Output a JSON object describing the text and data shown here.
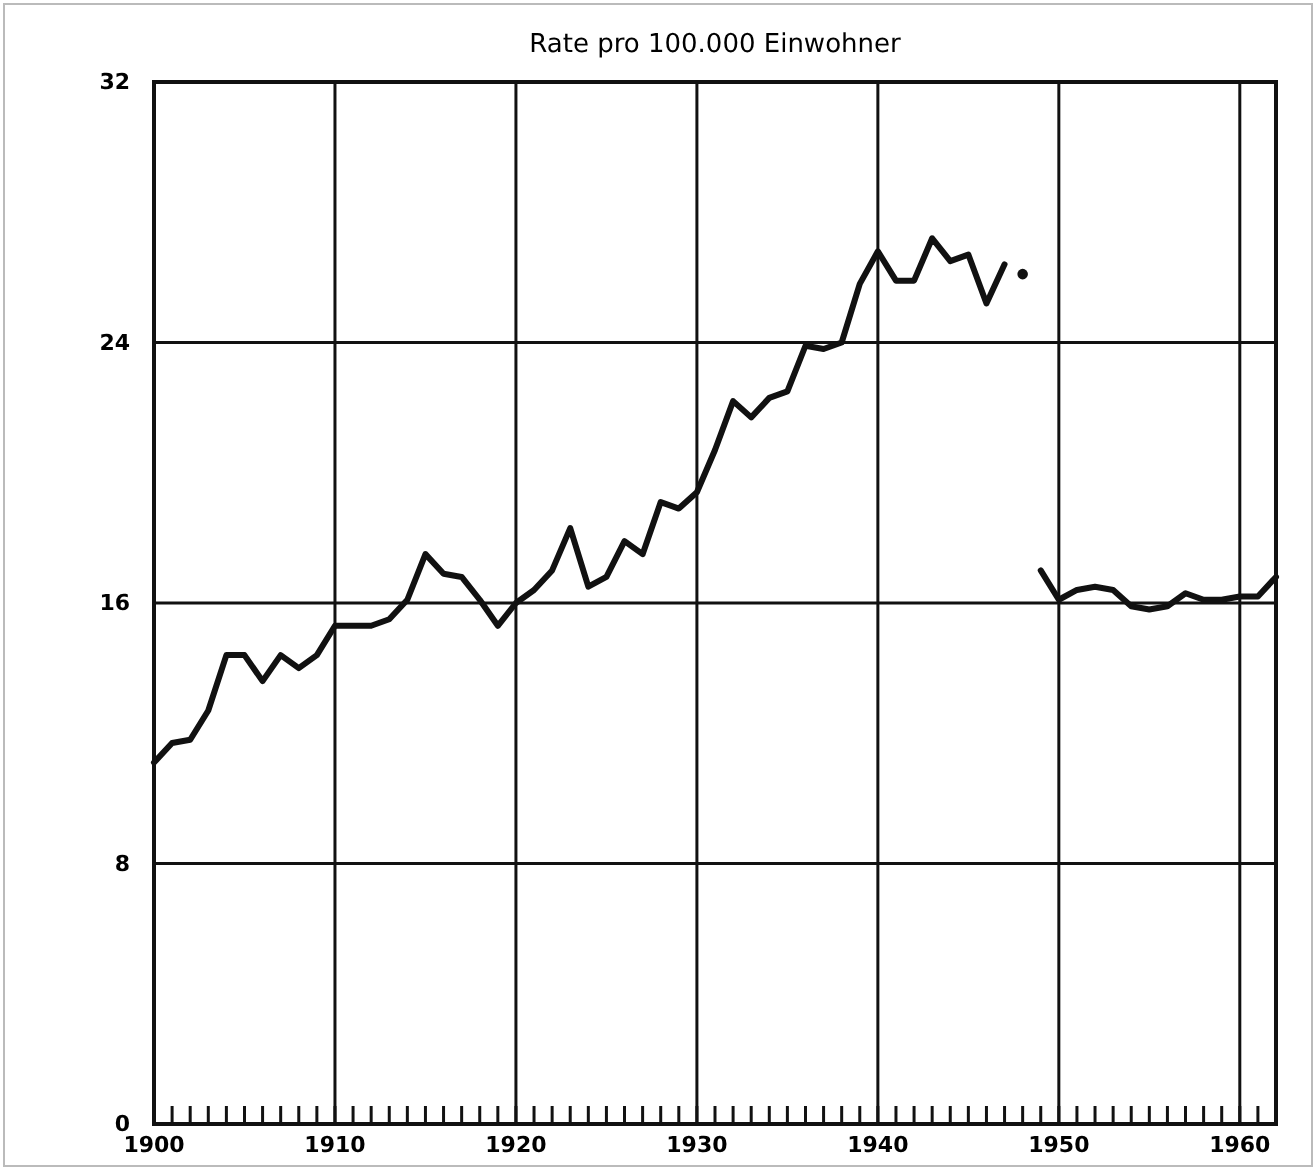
{
  "chart_data": {
    "type": "line",
    "title": "Rate pro 100.000 Einwohner",
    "x": [
      1900,
      1901,
      1902,
      1903,
      1904,
      1905,
      1906,
      1907,
      1908,
      1909,
      1910,
      1911,
      1912,
      1913,
      1914,
      1915,
      1916,
      1917,
      1918,
      1919,
      1920,
      1921,
      1922,
      1923,
      1924,
      1925,
      1926,
      1927,
      1928,
      1929,
      1930,
      1931,
      1932,
      1933,
      1934,
      1935,
      1936,
      1937,
      1938,
      1939,
      1940,
      1941,
      1942,
      1943,
      1944,
      1945,
      1946,
      1947,
      1948,
      1949,
      1950,
      1951,
      1952,
      1953,
      1954,
      1955,
      1956,
      1957,
      1958,
      1959,
      1960,
      1961,
      1962
    ],
    "series": [
      {
        "color": "#111111",
        "values": [
          11.1,
          11.7,
          11.8,
          12.7,
          14.4,
          14.4,
          13.6,
          14.4,
          14.0,
          14.4,
          15.3,
          15.3,
          15.3,
          15.5,
          16.1,
          17.5,
          16.9,
          16.8,
          16.1,
          15.3,
          16.0,
          16.4,
          17.0,
          18.3,
          16.5,
          16.8,
          17.9,
          17.5,
          19.1,
          18.9,
          19.4,
          20.7,
          22.2,
          21.7,
          22.3,
          22.5,
          23.9,
          23.8,
          24.0,
          25.8,
          26.8,
          25.9,
          25.9,
          27.2,
          26.5,
          26.7,
          25.2,
          26.4,
          null,
          17.0,
          16.1,
          16.4,
          16.5,
          16.4,
          15.9,
          15.8,
          15.9,
          16.3,
          16.1,
          16.1,
          16.2,
          16.2,
          16.8
        ]
      },
      {
        "type": "scatter",
        "marker": "circle",
        "color": "#111111",
        "x": [
          1948
        ],
        "values": [
          26.1
        ]
      }
    ],
    "xlim": [
      1900,
      1962
    ],
    "xticks": [
      1900,
      {
        "value": 1901,
        "label": null
      },
      {
        "value": 1902,
        "label": null
      },
      {
        "value": 1903,
        "label": null
      },
      {
        "value": 1904,
        "label": null
      },
      {
        "value": 1905,
        "label": null
      },
      {
        "value": 1906,
        "label": null
      },
      {
        "value": 1907,
        "label": null
      },
      {
        "value": 1908,
        "label": null
      },
      {
        "value": 1909,
        "label": null
      },
      1910,
      {
        "value": 1911,
        "label": null
      },
      {
        "value": 1912,
        "label": null
      },
      {
        "value": 1913,
        "label": null
      },
      {
        "value": 1914,
        "label": null
      },
      {
        "value": 1915,
        "label": null
      },
      {
        "value": 1916,
        "label": null
      },
      {
        "value": 1917,
        "label": null
      },
      {
        "value": 1918,
        "label": null
      },
      {
        "value": 1919,
        "label": null
      },
      1920,
      {
        "value": 1921,
        "label": null
      },
      {
        "value": 1922,
        "label": null
      },
      {
        "value": 1923,
        "label": null
      },
      {
        "value": 1924,
        "label": null
      },
      {
        "value": 1925,
        "label": null
      },
      {
        "value": 1926,
        "label": null
      },
      {
        "value": 1927,
        "label": null
      },
      {
        "value": 1928,
        "label": null
      },
      {
        "value": 1929,
        "label": null
      },
      1930,
      {
        "value": 1931,
        "label": null
      },
      {
        "value": 1932,
        "label": null
      },
      {
        "value": 1933,
        "label": null
      },
      {
        "value": 1934,
        "label": null
      },
      {
        "value": 1935,
        "label": null
      },
      {
        "value": 1936,
        "label": null
      },
      {
        "value": 1937,
        "label": null
      },
      {
        "value": 1938,
        "label": null
      },
      {
        "value": 1939,
        "label": null
      },
      1940,
      {
        "value": 1941,
        "label": null
      },
      {
        "value": 1942,
        "label": null
      },
      {
        "value": 1943,
        "label": null
      },
      {
        "value": 1944,
        "label": null
      },
      {
        "value": 1945,
        "label": null
      },
      {
        "value": 1946,
        "label": null
      },
      {
        "value": 1947,
        "label": null
      },
      {
        "value": 1948,
        "label": null
      },
      {
        "value": 1949,
        "label": null
      },
      1950,
      {
        "value": 1951,
        "label": null
      },
      {
        "value": 1952,
        "label": null
      },
      {
        "value": 1953,
        "label": null
      },
      {
        "value": 1954,
        "label": null
      },
      {
        "value": 1955,
        "label": null
      },
      {
        "value": 1956,
        "label": null
      },
      {
        "value": 1957,
        "label": null
      },
      {
        "value": 1958,
        "label": null
      },
      {
        "value": 1959,
        "label": null
      },
      1960,
      {
        "value": 1961,
        "label": null
      }
    ],
    "ylim": [
      0,
      32
    ],
    "yticks": [
      0,
      8,
      16,
      24,
      32
    ],
    "grid": true,
    "line_style": "solid"
  }
}
